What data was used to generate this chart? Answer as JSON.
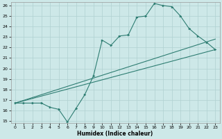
{
  "xlabel": "Humidex (Indice chaleur)",
  "bg_color": "#cde8e8",
  "grid_color": "#b0d0d0",
  "line_color": "#2e7d72",
  "xlim_min": -0.5,
  "xlim_max": 23.5,
  "ylim_min": 14.8,
  "ylim_max": 26.3,
  "xticks": [
    0,
    1,
    2,
    3,
    4,
    5,
    6,
    7,
    8,
    9,
    10,
    11,
    12,
    13,
    14,
    15,
    16,
    17,
    18,
    19,
    20,
    21,
    22,
    23
  ],
  "yticks": [
    15,
    16,
    17,
    18,
    19,
    20,
    21,
    22,
    23,
    24,
    25,
    26
  ],
  "line1_x": [
    0,
    1,
    2,
    3,
    4,
    5,
    6,
    7,
    8,
    9,
    10,
    11,
    12,
    13,
    14,
    15,
    16,
    17,
    18,
    19,
    20,
    21,
    22,
    23
  ],
  "line1_y": [
    16.7,
    16.7,
    16.7,
    16.7,
    16.3,
    16.1,
    14.9,
    16.2,
    17.5,
    19.3,
    22.7,
    22.2,
    23.1,
    23.2,
    24.9,
    25.0,
    26.2,
    26.0,
    25.9,
    25.0,
    23.8,
    23.1,
    22.5,
    21.8
  ],
  "line2_x": [
    0,
    23
  ],
  "line2_y": [
    16.7,
    22.8
  ],
  "line3_x": [
    0,
    23
  ],
  "line3_y": [
    16.7,
    21.8
  ]
}
